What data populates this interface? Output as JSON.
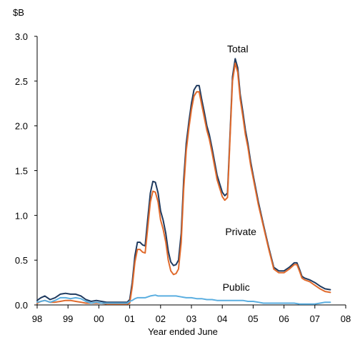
{
  "chart_data": {
    "type": "line",
    "title": "",
    "unit": "$B",
    "xlabel": "Year ended June",
    "ylabel": "",
    "ylim": [
      0,
      3.0
    ],
    "xlim": [
      1998,
      2008
    ],
    "grid": false,
    "y_ticks": [
      {
        "value": 0,
        "label": "0.0"
      },
      {
        "value": 0.5,
        "label": "0.5"
      },
      {
        "value": 1.0,
        "label": "1.0"
      },
      {
        "value": 1.5,
        "label": "1.5"
      },
      {
        "value": 2.0,
        "label": "2.0"
      },
      {
        "value": 2.5,
        "label": "2.5"
      },
      {
        "value": 3.0,
        "label": "3.0"
      }
    ],
    "x_ticks": [
      {
        "value": 1998,
        "label": "98"
      },
      {
        "value": 1999,
        "label": "99"
      },
      {
        "value": 2000,
        "label": "00"
      },
      {
        "value": 2001,
        "label": "01"
      },
      {
        "value": 2002,
        "label": "02"
      },
      {
        "value": 2003,
        "label": "03"
      },
      {
        "value": 2004,
        "label": "04"
      },
      {
        "value": 2005,
        "label": "05"
      },
      {
        "value": 2006,
        "label": "06"
      },
      {
        "value": 2007,
        "label": "07"
      },
      {
        "value": 2008,
        "label": "08"
      }
    ],
    "series": [
      {
        "name": "Total",
        "color": "#1f3a5f",
        "points": [
          [
            1998.0,
            0.05
          ],
          [
            1998.12,
            0.08
          ],
          [
            1998.25,
            0.1
          ],
          [
            1998.42,
            0.06
          ],
          [
            1998.58,
            0.08
          ],
          [
            1998.75,
            0.12
          ],
          [
            1998.92,
            0.13
          ],
          [
            1999.08,
            0.12
          ],
          [
            1999.25,
            0.12
          ],
          [
            1999.42,
            0.1
          ],
          [
            1999.58,
            0.06
          ],
          [
            1999.75,
            0.04
          ],
          [
            1999.92,
            0.05
          ],
          [
            2000.08,
            0.04
          ],
          [
            2000.25,
            0.03
          ],
          [
            2000.5,
            0.03
          ],
          [
            2000.75,
            0.03
          ],
          [
            2000.92,
            0.03
          ],
          [
            2001.0,
            0.06
          ],
          [
            2001.08,
            0.25
          ],
          [
            2001.17,
            0.55
          ],
          [
            2001.25,
            0.7
          ],
          [
            2001.33,
            0.7
          ],
          [
            2001.42,
            0.67
          ],
          [
            2001.5,
            0.66
          ],
          [
            2001.58,
            0.95
          ],
          [
            2001.67,
            1.25
          ],
          [
            2001.75,
            1.38
          ],
          [
            2001.83,
            1.37
          ],
          [
            2001.92,
            1.25
          ],
          [
            2002.0,
            1.05
          ],
          [
            2002.08,
            0.95
          ],
          [
            2002.17,
            0.8
          ],
          [
            2002.25,
            0.6
          ],
          [
            2002.33,
            0.48
          ],
          [
            2002.42,
            0.44
          ],
          [
            2002.5,
            0.45
          ],
          [
            2002.58,
            0.5
          ],
          [
            2002.67,
            0.8
          ],
          [
            2002.75,
            1.4
          ],
          [
            2002.83,
            1.8
          ],
          [
            2002.92,
            2.05
          ],
          [
            2003.0,
            2.25
          ],
          [
            2003.08,
            2.4
          ],
          [
            2003.17,
            2.45
          ],
          [
            2003.25,
            2.45
          ],
          [
            2003.33,
            2.3
          ],
          [
            2003.42,
            2.15
          ],
          [
            2003.5,
            2.0
          ],
          [
            2003.58,
            1.9
          ],
          [
            2003.67,
            1.75
          ],
          [
            2003.75,
            1.6
          ],
          [
            2003.83,
            1.45
          ],
          [
            2003.92,
            1.35
          ],
          [
            2004.0,
            1.26
          ],
          [
            2004.08,
            1.22
          ],
          [
            2004.17,
            1.25
          ],
          [
            2004.25,
            1.9
          ],
          [
            2004.33,
            2.55
          ],
          [
            2004.42,
            2.75
          ],
          [
            2004.5,
            2.65
          ],
          [
            2004.58,
            2.35
          ],
          [
            2004.67,
            2.15
          ],
          [
            2004.75,
            1.95
          ],
          [
            2004.83,
            1.8
          ],
          [
            2004.92,
            1.6
          ],
          [
            2005.0,
            1.45
          ],
          [
            2005.17,
            1.15
          ],
          [
            2005.33,
            0.9
          ],
          [
            2005.5,
            0.65
          ],
          [
            2005.67,
            0.42
          ],
          [
            2005.83,
            0.38
          ],
          [
            2006.0,
            0.38
          ],
          [
            2006.17,
            0.42
          ],
          [
            2006.33,
            0.47
          ],
          [
            2006.42,
            0.47
          ],
          [
            2006.5,
            0.4
          ],
          [
            2006.58,
            0.32
          ],
          [
            2006.67,
            0.3
          ],
          [
            2006.83,
            0.28
          ],
          [
            2007.0,
            0.25
          ],
          [
            2007.17,
            0.21
          ],
          [
            2007.33,
            0.18
          ],
          [
            2007.5,
            0.17
          ]
        ]
      },
      {
        "name": "Private",
        "color": "#e06a2c",
        "points": [
          [
            1998.0,
            0.02
          ],
          [
            1998.12,
            0.04
          ],
          [
            1998.25,
            0.05
          ],
          [
            1998.42,
            0.03
          ],
          [
            1998.58,
            0.03
          ],
          [
            1998.75,
            0.04
          ],
          [
            1998.92,
            0.05
          ],
          [
            1999.08,
            0.05
          ],
          [
            1999.25,
            0.04
          ],
          [
            1999.42,
            0.03
          ],
          [
            1999.58,
            0.02
          ],
          [
            1999.75,
            0.02
          ],
          [
            1999.92,
            0.02
          ],
          [
            2000.08,
            0.02
          ],
          [
            2000.25,
            0.01
          ],
          [
            2000.5,
            0.01
          ],
          [
            2000.75,
            0.01
          ],
          [
            2000.92,
            0.01
          ],
          [
            2001.0,
            0.02
          ],
          [
            2001.08,
            0.2
          ],
          [
            2001.17,
            0.48
          ],
          [
            2001.25,
            0.62
          ],
          [
            2001.33,
            0.62
          ],
          [
            2001.42,
            0.59
          ],
          [
            2001.5,
            0.58
          ],
          [
            2001.58,
            0.85
          ],
          [
            2001.67,
            1.15
          ],
          [
            2001.75,
            1.27
          ],
          [
            2001.83,
            1.26
          ],
          [
            2001.92,
            1.15
          ],
          [
            2002.0,
            0.95
          ],
          [
            2002.08,
            0.85
          ],
          [
            2002.17,
            0.7
          ],
          [
            2002.25,
            0.5
          ],
          [
            2002.33,
            0.38
          ],
          [
            2002.42,
            0.34
          ],
          [
            2002.5,
            0.35
          ],
          [
            2002.58,
            0.4
          ],
          [
            2002.67,
            0.7
          ],
          [
            2002.75,
            1.3
          ],
          [
            2002.83,
            1.72
          ],
          [
            2002.92,
            1.98
          ],
          [
            2003.0,
            2.18
          ],
          [
            2003.08,
            2.33
          ],
          [
            2003.17,
            2.38
          ],
          [
            2003.25,
            2.38
          ],
          [
            2003.33,
            2.24
          ],
          [
            2003.42,
            2.09
          ],
          [
            2003.5,
            1.95
          ],
          [
            2003.58,
            1.85
          ],
          [
            2003.67,
            1.7
          ],
          [
            2003.75,
            1.55
          ],
          [
            2003.83,
            1.4
          ],
          [
            2003.92,
            1.3
          ],
          [
            2004.0,
            1.21
          ],
          [
            2004.08,
            1.17
          ],
          [
            2004.17,
            1.2
          ],
          [
            2004.25,
            1.85
          ],
          [
            2004.33,
            2.5
          ],
          [
            2004.42,
            2.7
          ],
          [
            2004.5,
            2.6
          ],
          [
            2004.58,
            2.3
          ],
          [
            2004.67,
            2.1
          ],
          [
            2004.75,
            1.9
          ],
          [
            2004.83,
            1.76
          ],
          [
            2004.92,
            1.56
          ],
          [
            2005.0,
            1.42
          ],
          [
            2005.17,
            1.12
          ],
          [
            2005.33,
            0.88
          ],
          [
            2005.5,
            0.63
          ],
          [
            2005.67,
            0.4
          ],
          [
            2005.83,
            0.36
          ],
          [
            2006.0,
            0.36
          ],
          [
            2006.17,
            0.4
          ],
          [
            2006.33,
            0.45
          ],
          [
            2006.42,
            0.45
          ],
          [
            2006.5,
            0.38
          ],
          [
            2006.58,
            0.3
          ],
          [
            2006.67,
            0.28
          ],
          [
            2006.83,
            0.26
          ],
          [
            2007.0,
            0.22
          ],
          [
            2007.17,
            0.18
          ],
          [
            2007.33,
            0.15
          ],
          [
            2007.5,
            0.14
          ]
        ]
      },
      {
        "name": "Public",
        "color": "#5aaee0",
        "points": [
          [
            1998.0,
            0.03
          ],
          [
            1998.12,
            0.04
          ],
          [
            1998.25,
            0.05
          ],
          [
            1998.42,
            0.03
          ],
          [
            1998.58,
            0.05
          ],
          [
            1998.75,
            0.08
          ],
          [
            1998.92,
            0.08
          ],
          [
            1999.08,
            0.07
          ],
          [
            1999.25,
            0.08
          ],
          [
            1999.42,
            0.07
          ],
          [
            1999.58,
            0.04
          ],
          [
            1999.75,
            0.02
          ],
          [
            1999.92,
            0.03
          ],
          [
            2000.08,
            0.02
          ],
          [
            2000.25,
            0.02
          ],
          [
            2000.5,
            0.02
          ],
          [
            2000.75,
            0.02
          ],
          [
            2000.92,
            0.02
          ],
          [
            2001.0,
            0.04
          ],
          [
            2001.08,
            0.05
          ],
          [
            2001.17,
            0.07
          ],
          [
            2001.25,
            0.08
          ],
          [
            2001.33,
            0.08
          ],
          [
            2001.5,
            0.08
          ],
          [
            2001.67,
            0.1
          ],
          [
            2001.83,
            0.11
          ],
          [
            2001.92,
            0.1
          ],
          [
            2002.0,
            0.1
          ],
          [
            2002.17,
            0.1
          ],
          [
            2002.33,
            0.1
          ],
          [
            2002.5,
            0.1
          ],
          [
            2002.67,
            0.09
          ],
          [
            2002.83,
            0.08
          ],
          [
            2003.0,
            0.08
          ],
          [
            2003.17,
            0.07
          ],
          [
            2003.33,
            0.07
          ],
          [
            2003.5,
            0.06
          ],
          [
            2003.67,
            0.06
          ],
          [
            2003.83,
            0.05
          ],
          [
            2004.0,
            0.05
          ],
          [
            2004.17,
            0.05
          ],
          [
            2004.33,
            0.05
          ],
          [
            2004.5,
            0.05
          ],
          [
            2004.67,
            0.05
          ],
          [
            2004.83,
            0.04
          ],
          [
            2005.0,
            0.04
          ],
          [
            2005.17,
            0.03
          ],
          [
            2005.33,
            0.02
          ],
          [
            2005.5,
            0.02
          ],
          [
            2005.67,
            0.02
          ],
          [
            2005.83,
            0.02
          ],
          [
            2006.0,
            0.02
          ],
          [
            2006.17,
            0.02
          ],
          [
            2006.33,
            0.02
          ],
          [
            2006.5,
            0.01
          ],
          [
            2006.67,
            0.01
          ],
          [
            2006.83,
            0.01
          ],
          [
            2007.0,
            0.01
          ],
          [
            2007.17,
            0.02
          ],
          [
            2007.33,
            0.03
          ],
          [
            2007.5,
            0.03
          ]
        ]
      }
    ],
    "annotations": [
      {
        "series": "Total",
        "label": "Total",
        "x": 2004.5,
        "y": 2.82
      },
      {
        "series": "Private",
        "label": "Private",
        "x": 2004.6,
        "y": 0.78
      },
      {
        "series": "Public",
        "label": "Public",
        "x": 2004.45,
        "y": 0.16
      }
    ]
  }
}
